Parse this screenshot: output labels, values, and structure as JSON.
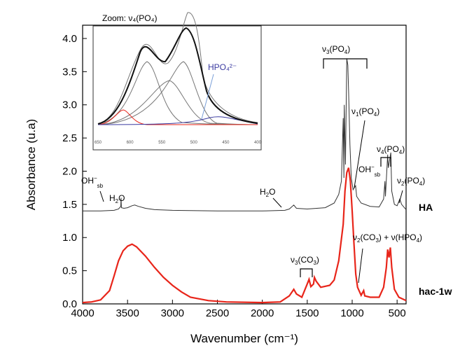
{
  "chart_data": {
    "type": "line",
    "xlabel": "Wavenumber (cm⁻¹)",
    "ylabel": "Absorbance (u.a)",
    "xlim": [
      4000,
      400
    ],
    "ylim": [
      0.0,
      4.2
    ],
    "x_reversed": true,
    "xticks": [
      "4000",
      "3500",
      "3000",
      "2500",
      "2000",
      "1500",
      "1000",
      "500"
    ],
    "yticks": [
      "0.0",
      "0.5",
      "1.0",
      "1.5",
      "2.0",
      "2.5",
      "3.0",
      "3.5",
      "4.0"
    ],
    "series": [
      {
        "name": "HA",
        "color": "#333333",
        "points": [
          [
            4000,
            1.4
          ],
          [
            3800,
            1.4
          ],
          [
            3650,
            1.41
          ],
          [
            3600,
            1.43
          ],
          [
            3575,
            1.47
          ],
          [
            3572,
            1.6
          ],
          [
            3568,
            1.45
          ],
          [
            3540,
            1.44
          ],
          [
            3500,
            1.45
          ],
          [
            3450,
            1.48
          ],
          [
            3420,
            1.49
          ],
          [
            3380,
            1.47
          ],
          [
            3300,
            1.44
          ],
          [
            3200,
            1.42
          ],
          [
            3000,
            1.41
          ],
          [
            2500,
            1.4
          ],
          [
            2000,
            1.4
          ],
          [
            1750,
            1.41
          ],
          [
            1700,
            1.43
          ],
          [
            1650,
            1.49
          ],
          [
            1620,
            1.44
          ],
          [
            1500,
            1.43
          ],
          [
            1300,
            1.45
          ],
          [
            1200,
            1.52
          ],
          [
            1150,
            1.65
          ],
          [
            1120,
            1.85
          ],
          [
            1100,
            2.8
          ],
          [
            1092,
            1.9
          ],
          [
            1088,
            3.0
          ],
          [
            1075,
            2.1
          ],
          [
            1060,
            3.7
          ],
          [
            1048,
            3.6
          ],
          [
            1040,
            3.2
          ],
          [
            1025,
            2.4
          ],
          [
            1010,
            1.9
          ],
          [
            990,
            1.72
          ],
          [
            962,
            1.78
          ],
          [
            950,
            1.62
          ],
          [
            900,
            1.52
          ],
          [
            800,
            1.47
          ],
          [
            700,
            1.46
          ],
          [
            650,
            1.58
          ],
          [
            635,
            1.85
          ],
          [
            630,
            1.62
          ],
          [
            605,
            2.25
          ],
          [
            598,
            2.05
          ],
          [
            570,
            2.28
          ],
          [
            560,
            1.7
          ],
          [
            530,
            1.5
          ],
          [
            500,
            1.48
          ],
          [
            470,
            1.58
          ],
          [
            450,
            1.5
          ],
          [
            400,
            1.42
          ]
        ]
      },
      {
        "name": "hac-1w",
        "color": "#e8251a",
        "points": [
          [
            4000,
            0.02
          ],
          [
            3900,
            0.03
          ],
          [
            3800,
            0.06
          ],
          [
            3700,
            0.2
          ],
          [
            3650,
            0.42
          ],
          [
            3600,
            0.65
          ],
          [
            3550,
            0.8
          ],
          [
            3500,
            0.87
          ],
          [
            3450,
            0.9
          ],
          [
            3400,
            0.86
          ],
          [
            3300,
            0.72
          ],
          [
            3200,
            0.55
          ],
          [
            3100,
            0.4
          ],
          [
            3000,
            0.28
          ],
          [
            2900,
            0.18
          ],
          [
            2800,
            0.1
          ],
          [
            2600,
            0.05
          ],
          [
            2400,
            0.03
          ],
          [
            2000,
            0.02
          ],
          [
            1800,
            0.03
          ],
          [
            1700,
            0.12
          ],
          [
            1650,
            0.22
          ],
          [
            1620,
            0.15
          ],
          [
            1560,
            0.1
          ],
          [
            1500,
            0.3
          ],
          [
            1480,
            0.37
          ],
          [
            1460,
            0.26
          ],
          [
            1430,
            0.3
          ],
          [
            1420,
            0.4
          ],
          [
            1400,
            0.34
          ],
          [
            1350,
            0.25
          ],
          [
            1250,
            0.28
          ],
          [
            1200,
            0.36
          ],
          [
            1150,
            0.65
          ],
          [
            1100,
            1.2
          ],
          [
            1080,
            1.7
          ],
          [
            1060,
            1.98
          ],
          [
            1040,
            2.05
          ],
          [
            1020,
            1.85
          ],
          [
            1000,
            1.4
          ],
          [
            980,
            0.9
          ],
          [
            960,
            0.45
          ],
          [
            940,
            0.25
          ],
          [
            900,
            0.13
          ],
          [
            872,
            0.2
          ],
          [
            860,
            0.12
          ],
          [
            800,
            0.1
          ],
          [
            700,
            0.1
          ],
          [
            650,
            0.25
          ],
          [
            620,
            0.55
          ],
          [
            605,
            0.82
          ],
          [
            590,
            0.7
          ],
          [
            575,
            0.85
          ],
          [
            560,
            0.55
          ],
          [
            530,
            0.22
          ],
          [
            480,
            0.1
          ],
          [
            400,
            0.05
          ]
        ]
      }
    ],
    "series_labels": [
      "HA",
      "hac-1w"
    ],
    "annotations": {
      "oh_sb_main": "OH",
      "oh_sb_main_sup": "−",
      "oh_sb_main_sub": "sb",
      "h2o_main": "H",
      "h2o_main_sub": "2",
      "h2o_main_end": "O",
      "h2o_bend": "H",
      "h2o_bend_sub": "2",
      "h2o_bend_end": "O",
      "v3_po4": "ν",
      "v3_po4_sub": "3",
      "v3_po4_end": "(PO",
      "v3_po4_sub2": "4",
      "v3_po4_close": ")",
      "v1_po4": "ν",
      "v1_po4_sub": "1",
      "v1_po4_end": "(PO",
      "v1_po4_sub2": "4",
      "v1_po4_close": ")",
      "v4_po4": "ν",
      "v4_po4_sub": "4",
      "v4_po4_end": "(PO",
      "v4_po4_sub2": "4",
      "v4_po4_close": ")",
      "oh_sb_2": "OH",
      "oh_sb_2_sup": "−",
      "oh_sb_2_sub": "sb",
      "v2_po4": "ν",
      "v2_po4_sub": "2",
      "v2_po4_end": "(PO",
      "v2_po4_sub2": "4",
      "v2_po4_close": ")",
      "v3_co3": "ν",
      "v3_co3_sub": "3",
      "v3_co3_end": "(CO",
      "v3_co3_sub2": "3",
      "v3_co3_close": ")",
      "v2_co3_hpo4": "ν",
      "v2_co3_hpo4_sub": "2",
      "v2_co3_hpo4_mid": "(CO",
      "v2_co3_hpo4_sub2": "3",
      "v2_co3_hpo4_rest": ") + ν(HPO",
      "v2_co3_hpo4_sub3": "4",
      "v2_co3_hpo4_close": ")"
    },
    "inset": {
      "title": "Zoom: ν₄(PO₄)",
      "label": "HPO₄²⁻",
      "label_color": "#3a3aa0",
      "xticks": [
        "650",
        "600",
        "550",
        "500",
        "450",
        "400"
      ]
    },
    "grid": false,
    "legend": "none"
  }
}
